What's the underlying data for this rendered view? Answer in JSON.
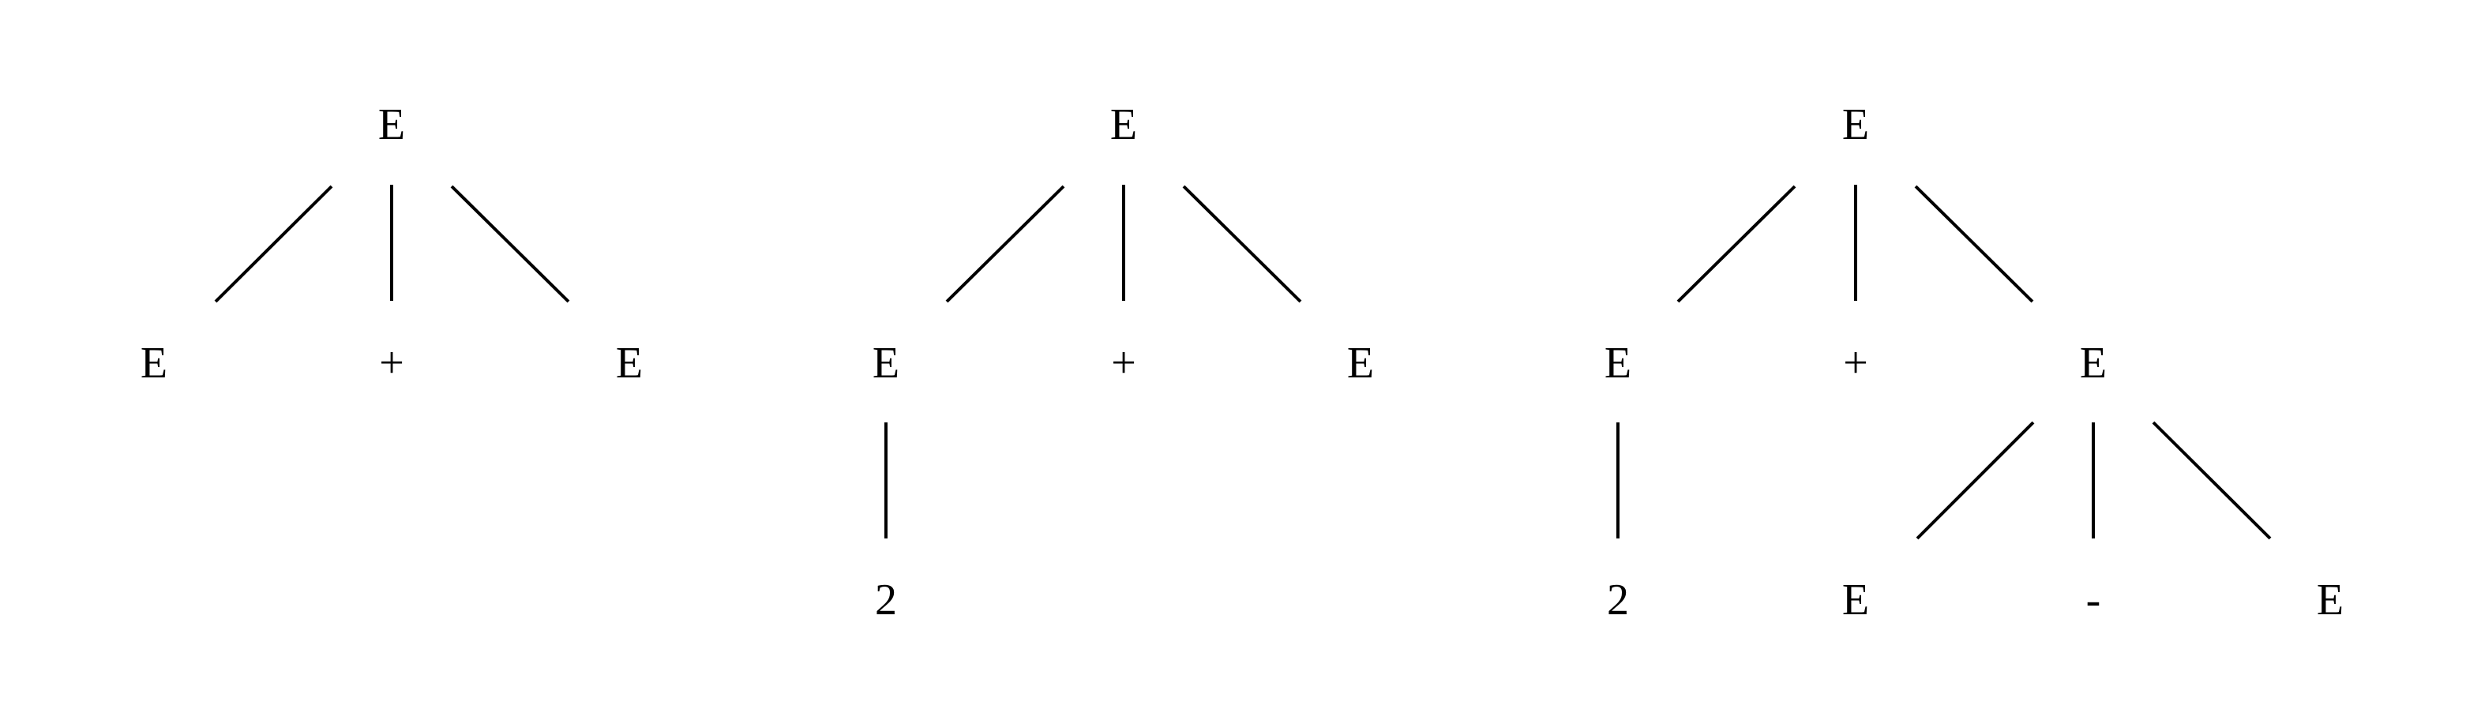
{
  "trees": [
    {
      "nodes": [
        {
          "id": "t1-root",
          "label": "E"
        },
        {
          "id": "t1-left",
          "label": "E"
        },
        {
          "id": "t1-plus",
          "label": "+"
        },
        {
          "id": "t1-right",
          "label": "E"
        }
      ],
      "edges": [
        {
          "from": "t1-root",
          "to": "t1-left"
        },
        {
          "from": "t1-root",
          "to": "t1-plus"
        },
        {
          "from": "t1-root",
          "to": "t1-right"
        }
      ]
    },
    {
      "nodes": [
        {
          "id": "t2-root",
          "label": "E"
        },
        {
          "id": "t2-left",
          "label": "E"
        },
        {
          "id": "t2-plus",
          "label": "+"
        },
        {
          "id": "t2-right",
          "label": "E"
        },
        {
          "id": "t2-left-2",
          "label": "2"
        }
      ],
      "edges": [
        {
          "from": "t2-root",
          "to": "t2-left"
        },
        {
          "from": "t2-root",
          "to": "t2-plus"
        },
        {
          "from": "t2-root",
          "to": "t2-right"
        },
        {
          "from": "t2-left",
          "to": "t2-left-2"
        }
      ]
    },
    {
      "nodes": [
        {
          "id": "t3-root",
          "label": "E"
        },
        {
          "id": "t3-left",
          "label": "E"
        },
        {
          "id": "t3-plus",
          "label": "+"
        },
        {
          "id": "t3-right",
          "label": "E"
        },
        {
          "id": "t3-left-2",
          "label": "2"
        },
        {
          "id": "t3-right-e1",
          "label": "E"
        },
        {
          "id": "t3-right-minus",
          "label": "-"
        },
        {
          "id": "t3-right-e2",
          "label": "E"
        }
      ],
      "edges": [
        {
          "from": "t3-root",
          "to": "t3-left"
        },
        {
          "from": "t3-root",
          "to": "t3-plus"
        },
        {
          "from": "t3-root",
          "to": "t3-right"
        },
        {
          "from": "t3-left",
          "to": "t3-left-2"
        },
        {
          "from": "t3-right",
          "to": "t3-right-e1"
        },
        {
          "from": "t3-right",
          "to": "t3-right-minus"
        },
        {
          "from": "t3-right",
          "to": "t3-right-e2"
        }
      ]
    }
  ]
}
